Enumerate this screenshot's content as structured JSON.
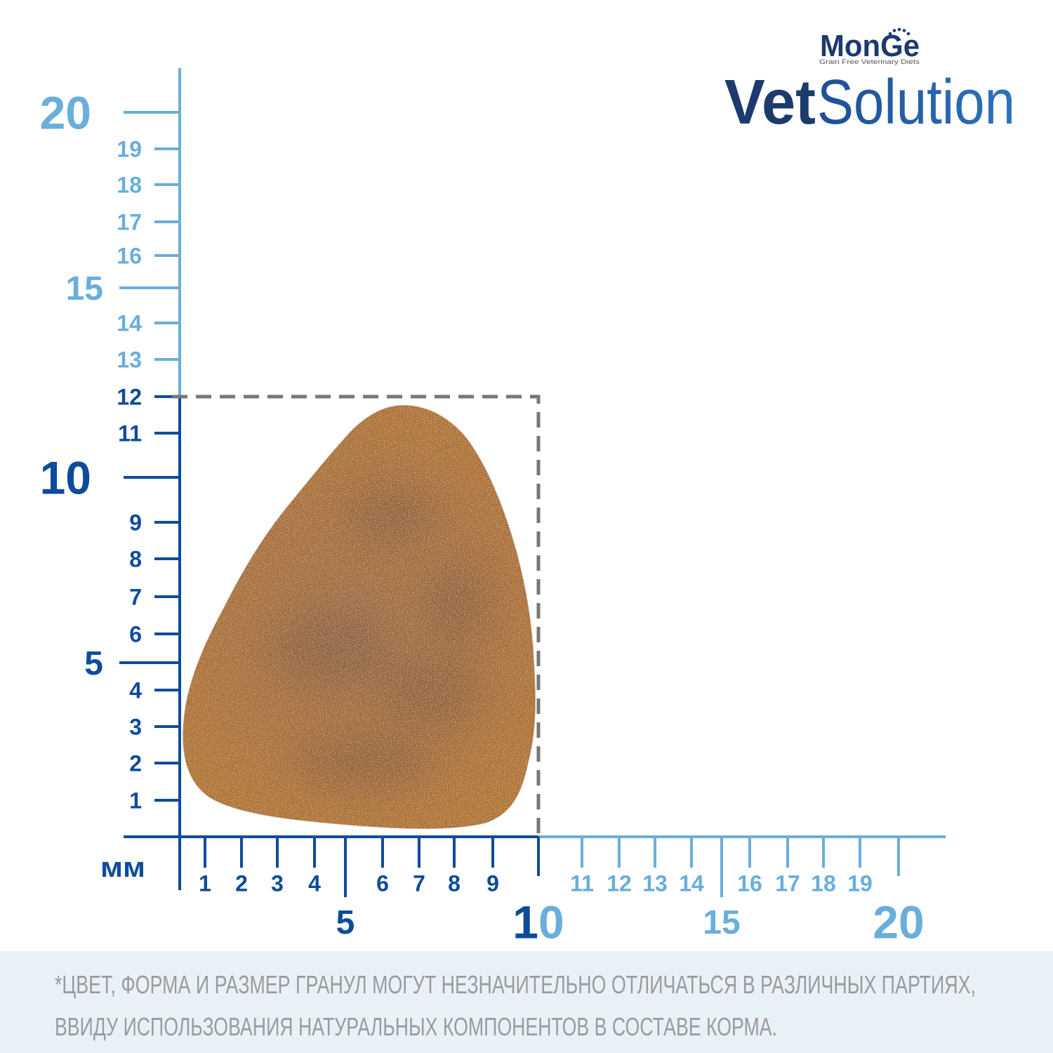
{
  "logo": {
    "brand": "MonGe",
    "tagline": "Grain Free Veterinary Diets",
    "product_bold": "Vet",
    "product_light": "Solution",
    "crown_icon": "crown-dots-icon"
  },
  "ruler": {
    "unit": "мм",
    "range_mm": [
      0,
      20
    ],
    "major_step": 5,
    "x_axis": {
      "labels": [
        "1",
        "2",
        "3",
        "4",
        "5",
        "6",
        "7",
        "8",
        "9",
        "10",
        "11",
        "12",
        "13",
        "14",
        "15",
        "16",
        "17",
        "18",
        "19",
        "20"
      ]
    },
    "y_axis": {
      "labels": [
        "1",
        "2",
        "3",
        "4",
        "5",
        "6",
        "7",
        "8",
        "9",
        "10",
        "11",
        "12",
        "13",
        "14",
        "15",
        "16",
        "17",
        "18",
        "19",
        "20"
      ]
    }
  },
  "kibble_size_mm": {
    "width": 10,
    "height": 12
  },
  "colors": {
    "highlight": "#0d4c9c",
    "scale": "#6aaedb",
    "outline": "#777777",
    "brand_dark": "#1c3a6e",
    "brand_blue": "#2564ad",
    "footer_bg": "#e9f1f8",
    "footer_text": "#9b9b9b"
  },
  "disclaimer": {
    "line1": "*ЦВЕТ, ФОРМА И РАЗМЕР ГРАНУЛ МОГУТ НЕЗНАЧИТЕЛЬНО ОТЛИЧАТЬСЯ В РАЗЛИЧНЫХ ПАРТИЯХ,",
    "line2": "ВВИДУ ИСПОЛЬЗОВАНИЯ НАТУРАЛЬНЫХ КОМПОНЕНТОВ В СОСТАВЕ КОРМА."
  }
}
